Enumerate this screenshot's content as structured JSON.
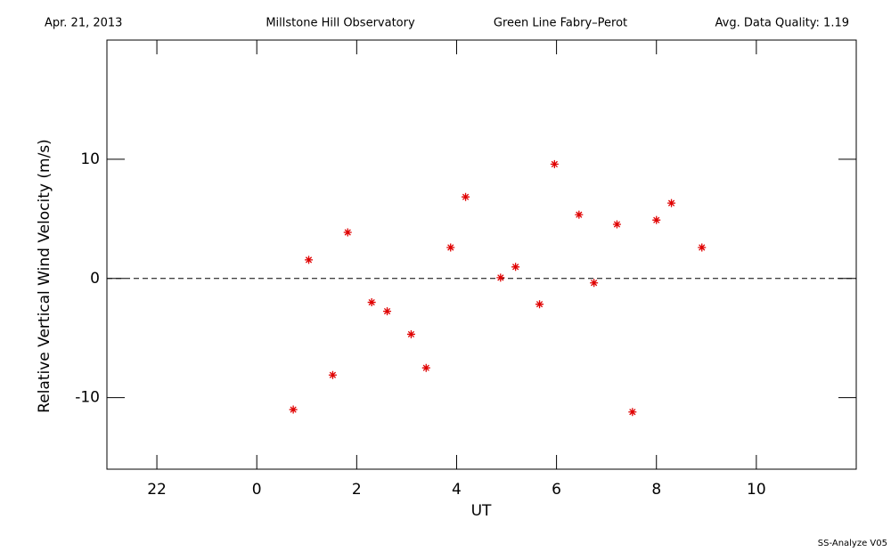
{
  "chart_data": {
    "type": "scatter",
    "header": [
      "Apr. 21, 2013",
      "Millstone Hill Observatory",
      "Green Line Fabry–Perot",
      "Avg. Data Quality: 1.19"
    ],
    "footer": "SS-Analyze V05",
    "xlabel": "UT",
    "ylabel": "Relative Vertical Wind Velocity (m/s)",
    "xlim": [
      -3,
      12
    ],
    "ylim": [
      -16,
      20
    ],
    "xticks": [
      {
        "value": -2,
        "label": "22"
      },
      0,
      2,
      4,
      6,
      8,
      10
    ],
    "yticks": [
      -10,
      0,
      10
    ],
    "reference_line": 0,
    "color": "#e00000",
    "x": [
      0.73,
      1.04,
      1.52,
      1.82,
      2.3,
      2.61,
      3.09,
      3.39,
      3.88,
      4.18,
      4.88,
      5.18,
      5.66,
      5.96,
      6.45,
      6.75,
      7.21,
      7.52,
      8.0,
      8.3,
      8.91
    ],
    "values": [
      -11.0,
      1.56,
      -8.1,
      3.87,
      -2.0,
      -2.75,
      -4.68,
      -7.5,
      2.6,
      6.84,
      0.07,
      0.97,
      -2.16,
      9.59,
      5.35,
      -0.37,
      4.54,
      -11.2,
      4.9,
      6.32,
      2.6
    ]
  }
}
